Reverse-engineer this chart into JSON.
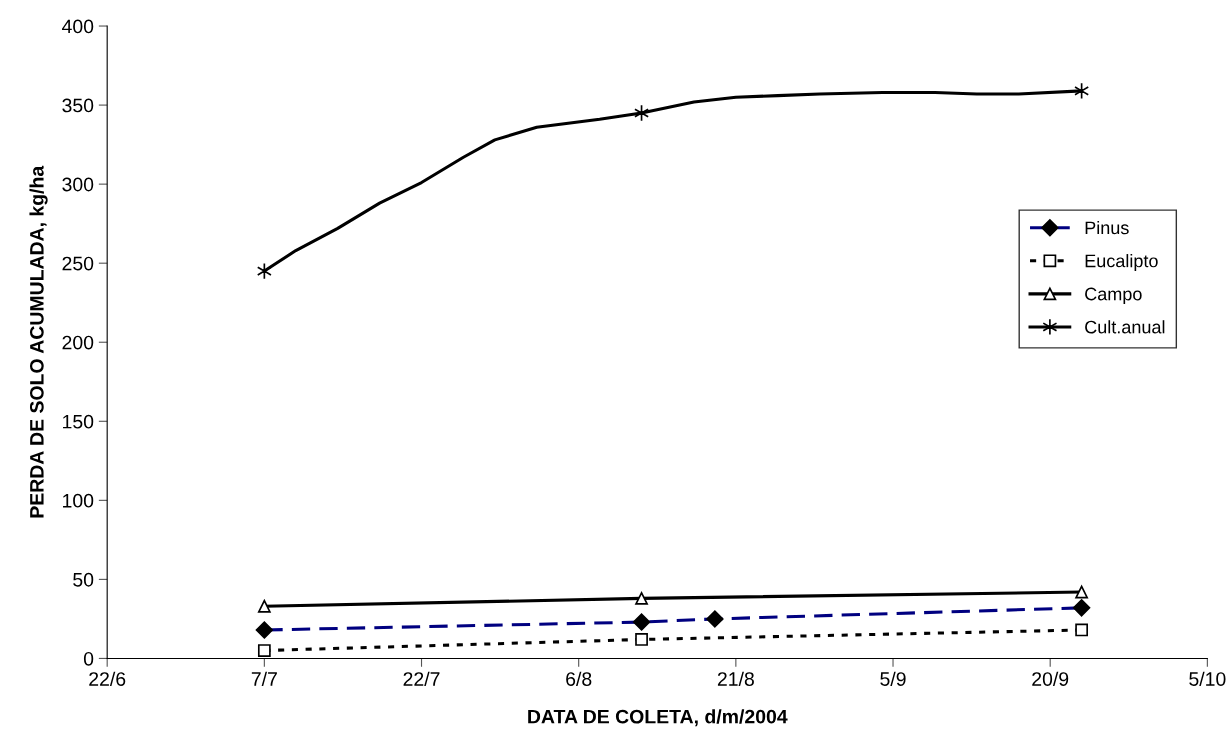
{
  "chart_data": {
    "type": "line",
    "xlabel": "DATA DE COLETA, d/m/2004",
    "ylabel": "PERDA DE SOLO ACUMULADA, kg/ha",
    "series": [
      {
        "name": "Pinus",
        "color": "#000080",
        "marker": "diamond",
        "line_style": "dashed",
        "x": [
          "2004-07-07",
          "2004-08-12",
          "2004-08-19",
          "2004-09-23"
        ],
        "values": [
          18,
          23,
          25,
          32
        ]
      },
      {
        "name": "Eucalipto",
        "color": "#000000",
        "marker": "square",
        "line_style": "dotted",
        "x": [
          "2004-07-07",
          "2004-08-12",
          "2004-09-23"
        ],
        "values": [
          5,
          12,
          18
        ]
      },
      {
        "name": "Campo",
        "color": "#000000",
        "marker": "triangle",
        "line_style": "solid",
        "x": [
          "2004-07-07",
          "2004-08-12",
          "2004-09-23"
        ],
        "values": [
          33,
          38,
          42
        ]
      },
      {
        "name": "Cult.anual",
        "color": "#000000",
        "marker": "none",
        "line_style": "solid",
        "x": [
          "2004-07-07",
          "2004-07-10",
          "2004-07-14",
          "2004-07-18",
          "2004-07-22",
          "2004-07-26",
          "2004-07-29",
          "2004-08-02",
          "2004-08-08",
          "2004-08-12",
          "2004-08-17",
          "2004-08-21",
          "2004-08-25",
          "2004-08-29",
          "2004-09-04",
          "2004-09-09",
          "2004-09-13",
          "2004-09-17",
          "2004-09-23"
        ],
        "values": [
          245,
          258,
          272,
          288,
          301,
          317,
          328,
          336,
          341,
          345,
          352,
          355,
          356,
          357,
          358,
          358,
          357,
          357,
          359
        ]
      },
      {
        "type": "scatter",
        "color": "#000000",
        "marker": "cross",
        "x": [
          "2004-07-07",
          "2004-08-12",
          "2004-09-23"
        ],
        "values": [
          245,
          345,
          359
        ]
      }
    ],
    "xlim": [
      "2004-06-22",
      "2004-10-05"
    ],
    "xticks": [
      {
        "value": "2004-06-22",
        "label": "22/6"
      },
      {
        "value": "2004-07-07",
        "label": "7/7"
      },
      {
        "value": "2004-07-22",
        "label": "22/7"
      },
      {
        "value": "2004-08-06",
        "label": "6/8"
      },
      {
        "value": "2004-08-21",
        "label": "21/8"
      },
      {
        "value": "2004-09-05",
        "label": "5/9"
      },
      {
        "value": "2004-09-20",
        "label": "20/9"
      },
      {
        "value": "2004-10-05",
        "label": "5/10"
      }
    ],
    "ylim": [
      0,
      400
    ],
    "yticks": [
      0,
      50,
      100,
      150,
      200,
      250,
      300,
      350,
      400
    ],
    "legend": "right",
    "grid": false
  }
}
